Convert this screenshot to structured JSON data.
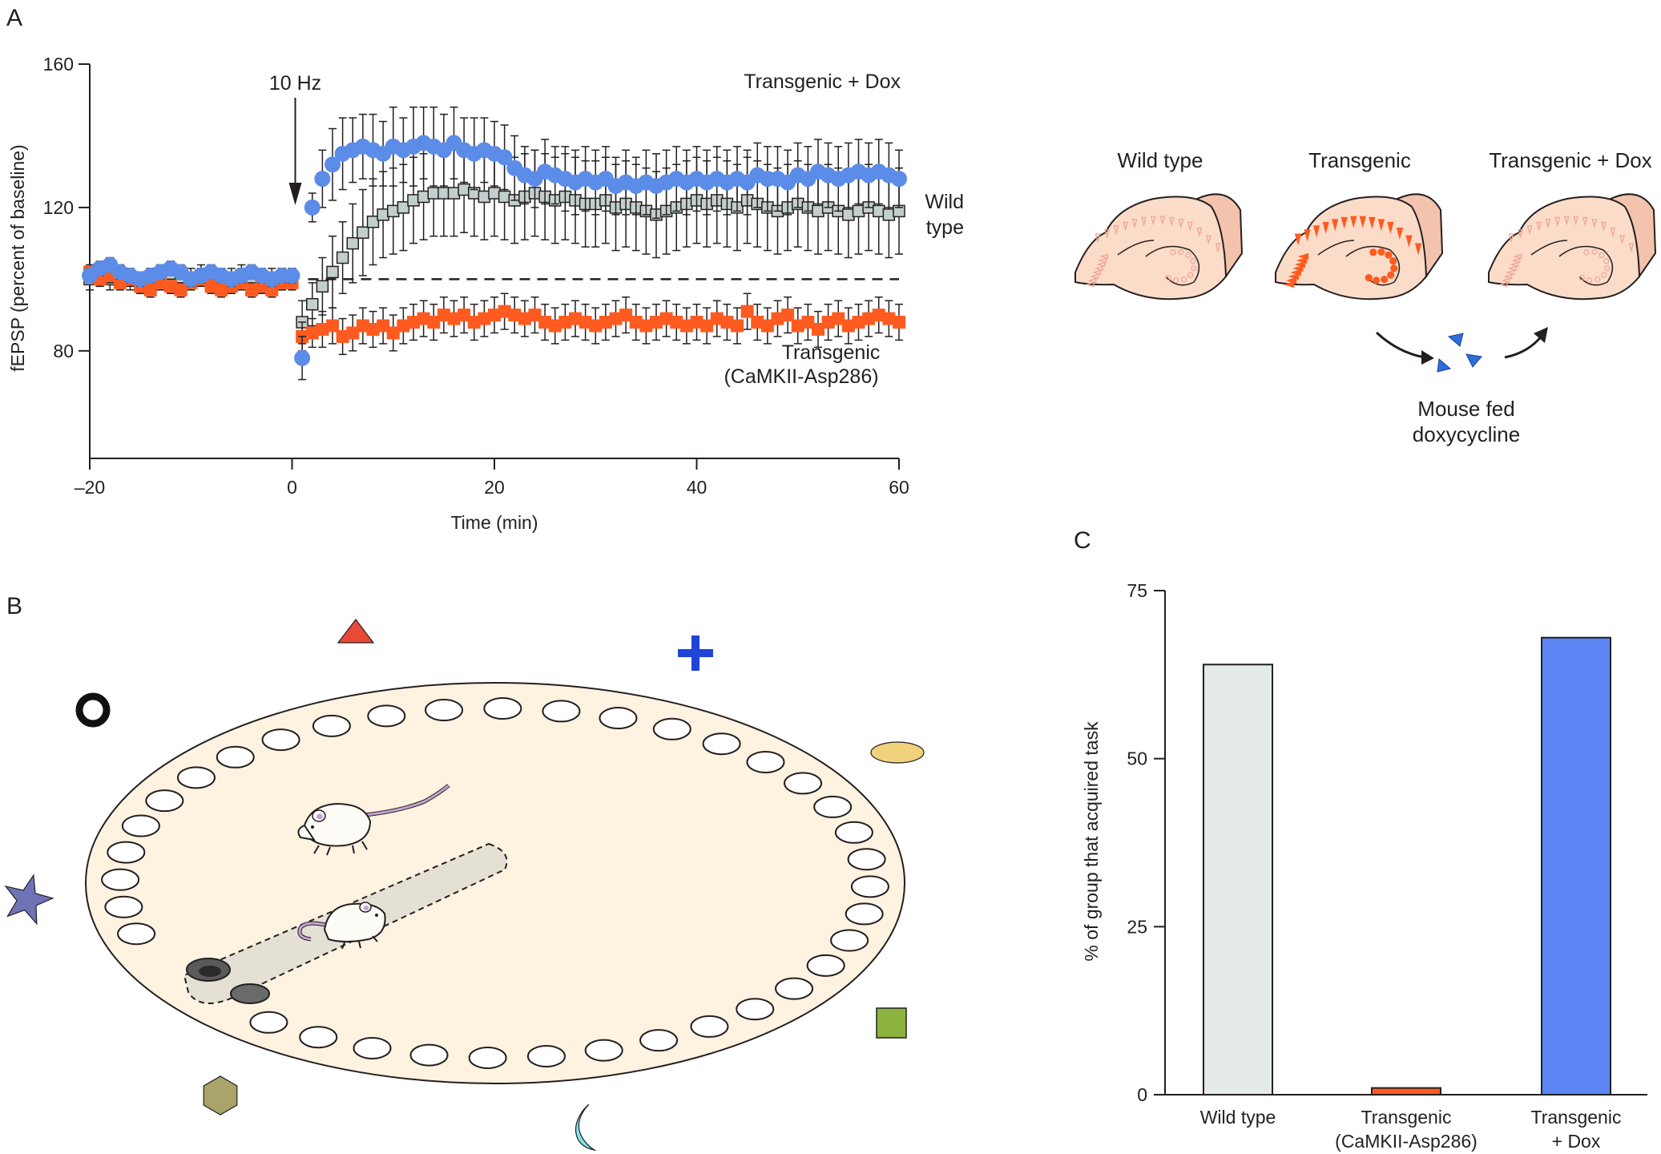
{
  "panels": {
    "a": "A",
    "b": "B",
    "c": "C"
  },
  "chart_a": {
    "type": "scatter",
    "xlabel": "Time (min)",
    "ylabel": "fEPSP (percent of baseline)",
    "xlim": [
      -20,
      60
    ],
    "ylim": [
      50,
      160
    ],
    "xticks": [
      "–20",
      "0",
      "20",
      "40",
      "60"
    ],
    "xtick_values": [
      -20,
      0,
      20,
      40,
      60
    ],
    "yticks": [
      "80",
      "120",
      "160"
    ],
    "ytick_values": [
      80,
      120,
      160
    ],
    "baseline": 100,
    "stimulus_label": "10 Hz",
    "stimulus_time": 0,
    "colors": {
      "transgenic_dox": "#5b8ce8",
      "wild_type": "#c3cfcc",
      "transgenic": "#ff5a1f"
    },
    "legend": {
      "transgenic_dox": "Transgenic + Dox",
      "wild_type_1": "Wild",
      "wild_type_2": "type",
      "transgenic_1": "Transgenic",
      "transgenic_2": "(CaMKII-Asp286)"
    },
    "series": [
      {
        "key": "transgenic_dox",
        "name": "Transgenic + Dox",
        "marker": "circle",
        "x": [
          -20,
          -19,
          -18,
          -17,
          -16,
          -15,
          -14,
          -13,
          -12,
          -11,
          -10,
          -9,
          -8,
          -7,
          -6,
          -5,
          -4,
          -3,
          -2,
          -1,
          0,
          1,
          2,
          3,
          4,
          5,
          6,
          7,
          8,
          9,
          10,
          11,
          12,
          13,
          14,
          15,
          16,
          17,
          18,
          19,
          20,
          21,
          22,
          23,
          24,
          25,
          26,
          27,
          28,
          29,
          30,
          31,
          32,
          33,
          34,
          35,
          36,
          37,
          38,
          39,
          40,
          41,
          42,
          43,
          44,
          45,
          46,
          47,
          48,
          49,
          50,
          51,
          52,
          53,
          54,
          55,
          56,
          57,
          58,
          59,
          60
        ],
        "y": [
          101,
          103,
          104,
          102,
          101,
          100,
          101,
          102,
          103,
          102,
          100,
          101,
          102,
          101,
          100,
          101,
          102,
          101,
          100,
          101,
          101,
          78,
          120,
          128,
          132,
          135,
          136,
          137,
          136,
          135,
          137,
          136,
          137,
          138,
          137,
          136,
          138,
          136,
          135,
          136,
          135,
          134,
          131,
          129,
          128,
          130,
          129,
          128,
          127,
          128,
          127,
          128,
          126,
          127,
          126,
          127,
          126,
          127,
          128,
          127,
          128,
          127,
          128,
          127,
          128,
          127,
          129,
          128,
          128,
          127,
          129,
          128,
          130,
          129,
          128,
          129,
          130,
          129,
          130,
          129,
          128
        ],
        "err": [
          2,
          2,
          2,
          2,
          2,
          2,
          2,
          2,
          2,
          2,
          2,
          2,
          2,
          2,
          2,
          2,
          2,
          2,
          2,
          2,
          2,
          6,
          4,
          8,
          10,
          10,
          9,
          9,
          10,
          9,
          11,
          9,
          11,
          10,
          11,
          10,
          10,
          9,
          10,
          9,
          9,
          9,
          9,
          8,
          8,
          9,
          8,
          9,
          9,
          9,
          9,
          9,
          8,
          9,
          8,
          9,
          9,
          9,
          9,
          9,
          9,
          9,
          9,
          9,
          9,
          9,
          9,
          9,
          9,
          9,
          9,
          9,
          9,
          9,
          9,
          9,
          9,
          9,
          9,
          9,
          8
        ]
      },
      {
        "key": "wild_type",
        "name": "Wild type",
        "marker": "square",
        "x": [
          -20,
          -19,
          -18,
          -17,
          -16,
          -15,
          -14,
          -13,
          -12,
          -11,
          -10,
          -9,
          -8,
          -7,
          -6,
          -5,
          -4,
          -3,
          -2,
          -1,
          0,
          1,
          2,
          3,
          4,
          5,
          6,
          7,
          8,
          9,
          10,
          11,
          12,
          13,
          14,
          15,
          16,
          17,
          18,
          19,
          20,
          21,
          22,
          23,
          24,
          25,
          26,
          27,
          28,
          29,
          30,
          31,
          32,
          33,
          34,
          35,
          36,
          37,
          38,
          39,
          40,
          41,
          42,
          43,
          44,
          45,
          46,
          47,
          48,
          49,
          50,
          51,
          52,
          53,
          54,
          55,
          56,
          57,
          58,
          59,
          60
        ],
        "y": [
          100,
          101,
          100,
          101,
          100,
          99,
          100,
          101,
          100,
          99,
          100,
          101,
          100,
          99,
          100,
          101,
          100,
          99,
          100,
          100,
          100,
          88,
          93,
          98,
          102,
          106,
          110,
          113,
          116,
          118,
          119,
          120,
          122,
          123,
          124,
          124,
          124,
          125,
          124,
          123,
          124,
          123,
          122,
          123,
          124,
          123,
          122,
          123,
          122,
          121,
          121,
          122,
          120,
          121,
          120,
          119,
          118,
          119,
          120,
          121,
          122,
          121,
          122,
          121,
          120,
          122,
          121,
          120,
          119,
          120,
          121,
          120,
          119,
          120,
          119,
          118,
          119,
          120,
          119,
          118,
          119
        ],
        "err": [
          3,
          3,
          3,
          3,
          3,
          3,
          3,
          3,
          3,
          3,
          3,
          3,
          3,
          3,
          3,
          3,
          3,
          3,
          3,
          3,
          3,
          6,
          6,
          8,
          10,
          10,
          11,
          12,
          12,
          12,
          12,
          12,
          12,
          12,
          12,
          12,
          12,
          12,
          12,
          12,
          12,
          12,
          12,
          12,
          12,
          12,
          12,
          12,
          12,
          12,
          12,
          12,
          12,
          12,
          12,
          12,
          12,
          12,
          12,
          12,
          12,
          12,
          12,
          12,
          12,
          12,
          12,
          12,
          12,
          12,
          12,
          12,
          12,
          12,
          12,
          12,
          12,
          12,
          12,
          12,
          12
        ]
      },
      {
        "key": "transgenic",
        "name": "Transgenic (CaMKII-Asp286)",
        "marker": "square",
        "x": [
          -20,
          -19,
          -18,
          -17,
          -16,
          -15,
          -14,
          -13,
          -12,
          -11,
          -10,
          -9,
          -8,
          -7,
          -6,
          -5,
          -4,
          -3,
          -2,
          -1,
          0,
          1,
          2,
          3,
          4,
          5,
          6,
          7,
          8,
          9,
          10,
          11,
          12,
          13,
          14,
          15,
          16,
          17,
          18,
          19,
          20,
          21,
          22,
          23,
          24,
          25,
          26,
          27,
          28,
          29,
          30,
          31,
          32,
          33,
          34,
          35,
          36,
          37,
          38,
          39,
          40,
          41,
          42,
          43,
          44,
          45,
          46,
          47,
          48,
          49,
          50,
          51,
          52,
          53,
          54,
          55,
          56,
          57,
          58,
          59,
          60
        ],
        "y": [
          102,
          100,
          101,
          99,
          100,
          98,
          97,
          99,
          98,
          97,
          99,
          100,
          98,
          97,
          98,
          99,
          97,
          98,
          97,
          99,
          99,
          84,
          85,
          86,
          87,
          84,
          85,
          87,
          86,
          87,
          85,
          87,
          88,
          89,
          88,
          90,
          89,
          90,
          88,
          89,
          90,
          91,
          90,
          89,
          90,
          88,
          87,
          88,
          89,
          88,
          87,
          88,
          89,
          90,
          88,
          87,
          88,
          89,
          88,
          87,
          88,
          87,
          89,
          88,
          87,
          91,
          88,
          87,
          89,
          90,
          87,
          88,
          86,
          88,
          89,
          87,
          88,
          89,
          90,
          89,
          88
        ],
        "err": [
          2,
          2,
          2,
          2,
          2,
          2,
          2,
          2,
          2,
          2,
          2,
          2,
          2,
          2,
          2,
          2,
          2,
          2,
          2,
          2,
          2,
          4,
          4,
          5,
          5,
          5,
          5,
          5,
          5,
          5,
          5,
          5,
          5,
          5,
          5,
          5,
          5,
          5,
          5,
          5,
          5,
          5,
          5,
          5,
          5,
          5,
          5,
          5,
          5,
          5,
          5,
          5,
          5,
          5,
          5,
          5,
          5,
          5,
          5,
          5,
          5,
          5,
          5,
          5,
          5,
          5,
          5,
          5,
          5,
          5,
          5,
          5,
          5,
          5,
          5,
          5,
          5,
          5,
          5,
          5,
          5
        ]
      }
    ]
  },
  "diagram_a": {
    "labels": [
      "Wild type",
      "Transgenic",
      "Transgenic + Dox"
    ],
    "feed_1": "Mouse fed",
    "feed_2": "doxycycline",
    "colors": {
      "tissue": "#fbdcc8",
      "tissue_back": "#f3c3ae",
      "cells_normal": "#f2a395",
      "cells_transgenic": "#ff5a1f",
      "pill": "#2f6ddc"
    }
  },
  "diagram_b": {
    "hole_count": 40,
    "colors": {
      "platform": "#fef2e0",
      "corridor": "#e4e0d3",
      "triangle": "#e94a35",
      "cross": "#1f44d8",
      "ellipse": "#f1d27c",
      "star": "#6f73b6",
      "square": "#8bb33d",
      "hexagon": "#a8a46a",
      "moon": "#7ce3ea",
      "mouse_tail": "#c8a3d1"
    }
  },
  "chart_c": {
    "type": "bar",
    "ylabel": "% of group that acquired task",
    "ylim": [
      0,
      75
    ],
    "yticks": [
      "0",
      "25",
      "50",
      "75"
    ],
    "ytick_values": [
      0,
      25,
      50,
      75
    ],
    "categories": [
      {
        "line1": "Wild type",
        "line2": ""
      },
      {
        "line1": "Transgenic",
        "line2": "(CaMKII-Asp286)"
      },
      {
        "line1": "Transgenic",
        "line2": "+ Dox"
      }
    ],
    "values": [
      64,
      1,
      68
    ],
    "colors": [
      "#e4ebe8",
      "#ff5a1f",
      "#5b86f4"
    ]
  }
}
